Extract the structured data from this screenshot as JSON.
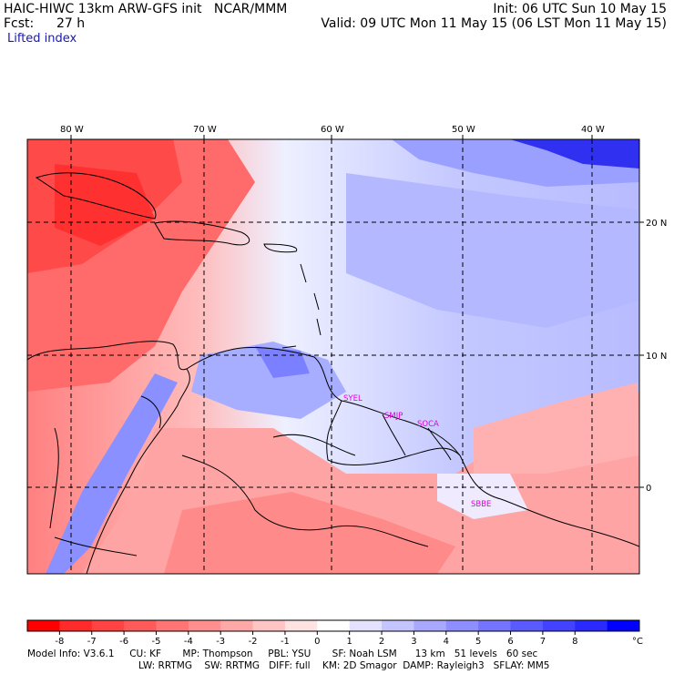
{
  "header": {
    "title": "HAIC-HIWC 13km ARW-GFS init   NCAR/MMM",
    "init": "Init: 06 UTC Sun 10 May 15",
    "fcst_label": "Fcst:",
    "fcst_value": "27 h",
    "valid": "Valid: 09 UTC Mon 11 May 15 (06 LST Mon 11 May 15)",
    "field": "Lifted index"
  },
  "map": {
    "lon_labels": [
      "80 W",
      "70 W",
      "60 W",
      "50 W",
      "40 W"
    ],
    "lat_labels": [
      "20 N",
      "10 N",
      "0"
    ],
    "stations": [
      "SYEL",
      "SMJP",
      "SOCA",
      "SBBE"
    ]
  },
  "colorbar": {
    "ticks": [
      "-8",
      "-7",
      "-6",
      "-5",
      "-4",
      "-3",
      "-2",
      "-1",
      "0",
      "1",
      "2",
      "3",
      "4",
      "5",
      "6",
      "7",
      "8"
    ],
    "unit": "°C",
    "colors": [
      "#ff0000",
      "#ff2a2a",
      "#ff4242",
      "#ff5a5a",
      "#ff7474",
      "#ff8e8e",
      "#ffa8a8",
      "#ffc4c4",
      "#ffe2e2",
      "#ffffff",
      "#e2e2ff",
      "#c4c4ff",
      "#a8a8ff",
      "#8e8eff",
      "#7474ff",
      "#5a5aff",
      "#4242ff",
      "#2a2aff",
      "#0000ff"
    ]
  },
  "footer": {
    "line1": "Model Info: V3.6.1     CU: KF       MP: Thompson     PBL: YSU       SF: Noah LSM      13 km   51 levels   60 sec",
    "line2": "LW: RRTMG    SW: RRTMG   DIFF: full    KM: 2D Smagor  DAMP: Rayleigh3   SFLAY: MM5"
  }
}
